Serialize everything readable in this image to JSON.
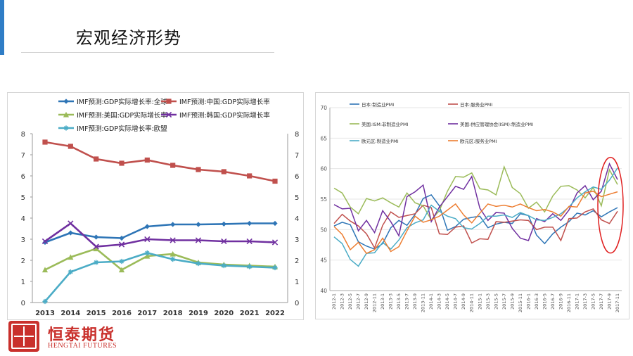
{
  "slide": {
    "title": "宏观经济形势"
  },
  "logo": {
    "name_cn": "恒泰期货",
    "name_en": "HENGTAI FUTURES"
  },
  "chart_data": [
    {
      "type": "line",
      "x": [
        "2013",
        "2014",
        "2015",
        "2016",
        "2017",
        "2018",
        "2019",
        "2020",
        "2021",
        "2022"
      ],
      "ylim": [
        0,
        8
      ],
      "yticks": [
        0,
        1,
        2,
        3,
        4,
        5,
        6,
        7,
        8
      ],
      "grid": false,
      "legend_position": "top",
      "series": [
        {
          "name": "IMF预测:GDP实际增长率:全球",
          "color": "#2e75b6",
          "marker": "diamond",
          "values": [
            2.85,
            3.3,
            3.1,
            3.05,
            3.6,
            3.7,
            3.7,
            3.72,
            3.75,
            3.75
          ]
        },
        {
          "name": "IMF预测:中国:GDP实际增长率",
          "color": "#c0504d",
          "marker": "square",
          "values": [
            7.6,
            7.4,
            6.8,
            6.6,
            6.75,
            6.5,
            6.3,
            6.2,
            6.0,
            5.75
          ]
        },
        {
          "name": "IMF预测:美国:GDP实际增长率",
          "color": "#9bbb59",
          "marker": "triangle",
          "values": [
            1.55,
            2.15,
            2.55,
            1.55,
            2.2,
            2.3,
            1.9,
            1.8,
            1.75,
            1.7
          ]
        },
        {
          "name": "IMF预测:韩国:GDP实际增长率",
          "color": "#7030a0",
          "marker": "x",
          "values": [
            2.9,
            3.75,
            2.65,
            2.75,
            3.0,
            2.95,
            2.95,
            2.9,
            2.9,
            2.85
          ]
        },
        {
          "name": "IMF预测:GDP实际增长率:欧盟",
          "color": "#4bacc6",
          "marker": "star",
          "values": [
            0.05,
            1.45,
            1.9,
            1.95,
            2.35,
            2.05,
            1.85,
            1.75,
            1.7,
            1.65
          ]
        }
      ]
    },
    {
      "type": "line",
      "x": [
        "2012-1",
        "2012-3",
        "2012-5",
        "2012-7",
        "2012-9",
        "2012-11",
        "2013-1",
        "2013-3",
        "2013-5",
        "2013-7",
        "2013-9",
        "2013-11",
        "2014-1",
        "2014-3",
        "2014-5",
        "2014-7",
        "2014-9",
        "2014-11",
        "2015-1",
        "2015-3",
        "2015-5",
        "2015-7",
        "2015-9",
        "2015-11",
        "2016-1",
        "2016-3",
        "2016-5",
        "2016-7",
        "2016-9",
        "2016-11",
        "2017-1",
        "2017-3",
        "2017-5",
        "2017-7",
        "2017-9",
        "2017-11"
      ],
      "ylim": [
        40,
        70
      ],
      "yticks": [
        40,
        45,
        50,
        55,
        60,
        65,
        70
      ],
      "grid": true,
      "legend_position": "top",
      "annotation": "red-ellipse-highlight-latest-months",
      "series": [
        {
          "name": "日本:制造业PMI",
          "color": "#2e75b6",
          "values": [
            50.6,
            51.2,
            50.8,
            48.0,
            47.3,
            46.8,
            47.7,
            50.3,
            51.5,
            50.7,
            52.5,
            55.1,
            55.7,
            53.9,
            49.9,
            50.5,
            51.7,
            52.0,
            52.2,
            50.3,
            50.9,
            51.2,
            51.0,
            52.6,
            52.3,
            49.1,
            47.7,
            49.3,
            50.4,
            51.3,
            52.7,
            52.4,
            53.1,
            52.1,
            52.9,
            53.6
          ]
        },
        {
          "name": "日本:服务业PMI",
          "color": "#c0504d",
          "values": [
            51.0,
            52.5,
            51.4,
            50.6,
            49.3,
            47.0,
            50.7,
            52.9,
            52.0,
            52.3,
            52.6,
            54.0,
            53.6,
            49.3,
            49.2,
            50.4,
            50.6,
            47.8,
            48.5,
            48.4,
            51.3,
            51.2,
            51.4,
            51.6,
            51.5,
            50.0,
            50.4,
            50.4,
            48.2,
            51.8,
            51.9,
            52.9,
            53.4,
            51.6,
            51.0,
            53.0
          ]
        },
        {
          "name": "美国:ISM:非制造业PMI",
          "color": "#9bbb59",
          "values": [
            56.8,
            56.0,
            53.7,
            52.6,
            55.1,
            54.7,
            55.2,
            54.4,
            53.7,
            56.0,
            54.4,
            53.9,
            51.6,
            53.1,
            56.3,
            58.7,
            58.6,
            59.3,
            56.7,
            56.5,
            55.7,
            60.3,
            56.9,
            55.9,
            53.5,
            54.5,
            52.9,
            55.5,
            57.1,
            57.2,
            56.5,
            55.2,
            56.9,
            53.9,
            59.8,
            57.4
          ]
        },
        {
          "name": "美国:供应管理协会(ISM):制造业PMI",
          "color": "#7030a0",
          "values": [
            54.1,
            53.4,
            53.5,
            49.8,
            51.5,
            49.5,
            53.1,
            51.3,
            49.0,
            55.4,
            56.2,
            57.3,
            51.3,
            53.7,
            55.4,
            57.1,
            56.6,
            58.7,
            53.5,
            51.5,
            52.8,
            52.7,
            50.2,
            48.6,
            48.2,
            51.8,
            51.3,
            52.6,
            51.5,
            53.2,
            56.0,
            57.2,
            54.9,
            56.3,
            60.8,
            58.2
          ]
        },
        {
          "name": "欧元区:制造业PMI",
          "color": "#4bacc6",
          "values": [
            48.8,
            47.7,
            45.1,
            44.0,
            46.1,
            46.2,
            47.9,
            46.8,
            48.3,
            50.3,
            51.1,
            51.6,
            54.0,
            53.0,
            52.2,
            51.8,
            50.3,
            50.1,
            51.0,
            52.2,
            52.2,
            52.4,
            52.0,
            52.8,
            52.3,
            51.6,
            51.5,
            52.0,
            52.6,
            53.7,
            55.2,
            56.2,
            57.0,
            56.6,
            58.1,
            60.1
          ]
        },
        {
          "name": "欧元区:服务业PMI",
          "color": "#ed7d31",
          "values": [
            50.5,
            49.2,
            46.7,
            47.9,
            46.1,
            46.7,
            48.6,
            46.4,
            47.2,
            49.8,
            52.2,
            51.2,
            51.6,
            52.2,
            53.2,
            54.2,
            52.4,
            51.1,
            52.7,
            54.2,
            53.8,
            54.0,
            53.7,
            54.2,
            53.6,
            53.1,
            53.3,
            52.9,
            52.2,
            53.8,
            53.7,
            56.0,
            56.3,
            55.4,
            55.8,
            56.2
          ]
        }
      ]
    }
  ]
}
